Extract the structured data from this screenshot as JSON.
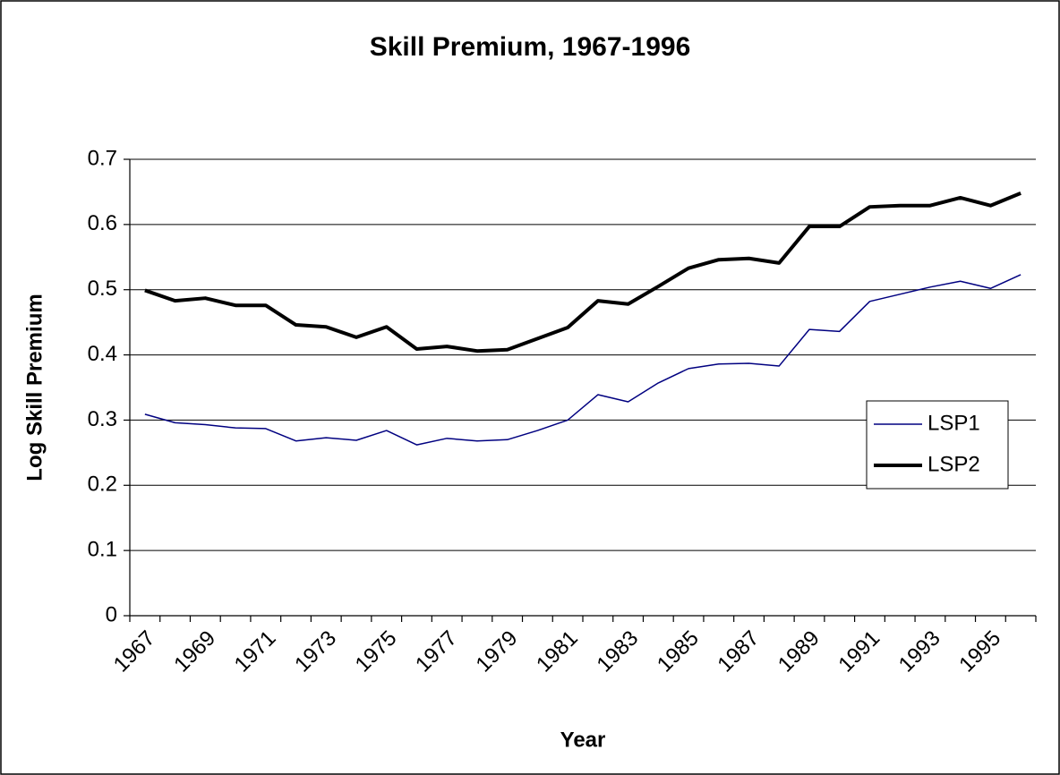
{
  "chart_data": {
    "type": "line",
    "title": "Skill Premium, 1967-1996",
    "x_label": "Year",
    "y_label": "Log Skill Premium",
    "categories": [
      1967,
      null,
      1969,
      null,
      1971,
      null,
      1973,
      null,
      1975,
      null,
      1977,
      null,
      1979,
      null,
      1981,
      null,
      1983,
      null,
      1985,
      null,
      1987,
      null,
      1989,
      null,
      1991,
      null,
      1993,
      null,
      1995,
      null
    ],
    "series": [
      {
        "name": "LSP1",
        "color": "#000080",
        "values": [
          0.309,
          0.296,
          0.293,
          0.288,
          0.287,
          0.268,
          0.273,
          0.269,
          0.284,
          0.262,
          0.272,
          0.268,
          0.27,
          0.284,
          0.3,
          0.339,
          0.328,
          0.357,
          0.379,
          0.386,
          0.387,
          0.383,
          0.439,
          0.436,
          0.482,
          0.493,
          0.504,
          0.513,
          0.502,
          0.523
        ]
      },
      {
        "name": "LSP2",
        "color": "#000000",
        "values": [
          0.499,
          0.483,
          0.487,
          0.476,
          0.476,
          0.446,
          0.443,
          0.427,
          0.443,
          0.409,
          0.413,
          0.406,
          0.408,
          0.425,
          0.442,
          0.483,
          0.478,
          0.505,
          0.533,
          0.546,
          0.548,
          0.541,
          0.597,
          0.597,
          0.627,
          0.629,
          0.629,
          0.641,
          0.629,
          0.648
        ]
      }
    ],
    "ylim": [
      0,
      0.7
    ],
    "yticks": [
      0,
      0.1,
      0.2,
      0.3,
      0.4,
      0.5,
      0.6,
      0.7
    ],
    "grid": true,
    "legend": "right"
  }
}
